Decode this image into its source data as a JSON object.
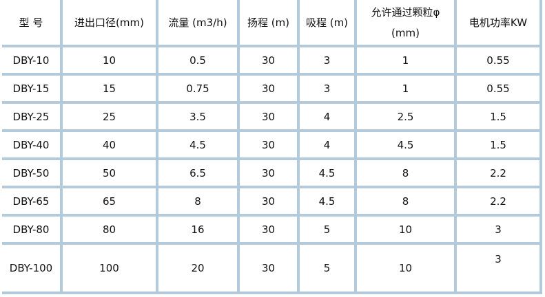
{
  "headers": [
    "型  号",
    "进出口径(mm)",
    "流量 (m3/h)",
    "扬程 (m)",
    "吸程 (m)",
    [
      "允许通过颗粒φ",
      "(mm)"
    ],
    "电机功率KW"
  ],
  "rows": [
    [
      "DBY-10",
      "10",
      "0.5",
      "30",
      "3",
      "1",
      "0.55"
    ],
    [
      "DBY-15",
      "15",
      "0.75",
      "30",
      "3",
      "1",
      "0.55"
    ],
    [
      "DBY-25",
      "25",
      "3.5",
      "30",
      "4",
      "2.5",
      "1.5"
    ],
    [
      "DBY-40",
      "40",
      "4.5",
      "30",
      "4",
      "4.5",
      "1.5"
    ],
    [
      "DBY-50",
      "50",
      "6.5",
      "30",
      "4.5",
      "8",
      "2.2"
    ],
    [
      "DBY-65",
      "65",
      "8",
      "30",
      "4.5",
      "8",
      "2.2"
    ],
    [
      "DBY-80",
      "80",
      "16",
      "30",
      "5",
      "10",
      "3"
    ],
    [
      "DBY-100",
      "100",
      "20",
      "30",
      "5",
      "10",
      "3"
    ]
  ],
  "colors": {
    "border": "#b3cadd"
  }
}
